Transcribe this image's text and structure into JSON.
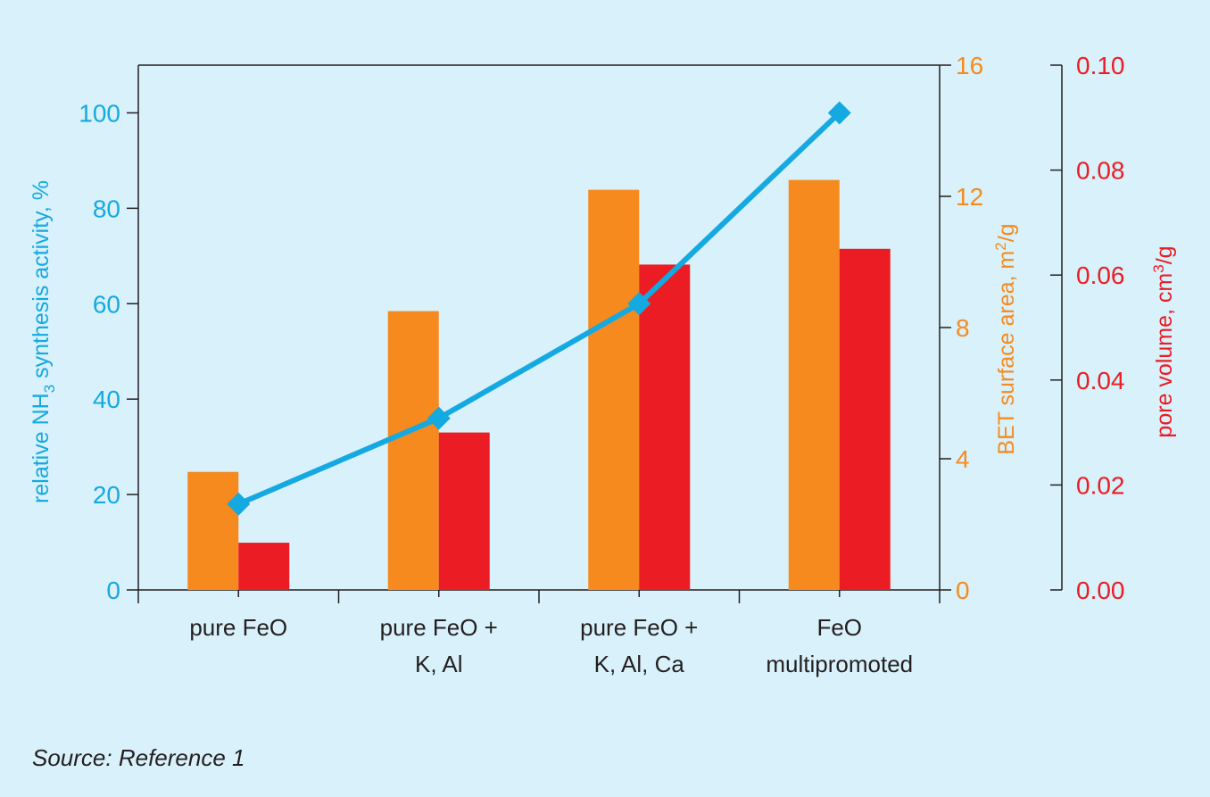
{
  "chart_data": {
    "type": "bar",
    "categories": [
      [
        "pure FeO"
      ],
      [
        "pure FeO +",
        "K, Al"
      ],
      [
        "pure FeO +",
        "K, Al, Ca"
      ],
      [
        "FeO",
        "multipromoted"
      ]
    ],
    "series": [
      {
        "type": "bar",
        "axis": "bet",
        "color": "#f68a1e",
        "values": [
          3.6,
          8.5,
          12.2,
          12.5
        ]
      },
      {
        "type": "bar",
        "axis": "pore",
        "color": "#ec1c24",
        "values": [
          0.009,
          0.03,
          0.062,
          0.065
        ]
      },
      {
        "type": "line",
        "axis": "activity",
        "color": "#14a9e1",
        "values": [
          18,
          36,
          60,
          100
        ]
      }
    ],
    "axes": {
      "activity": {
        "label_pre": "relative NH",
        "label_sub": "3",
        "label_post": " synthesis activity, %",
        "color": "#14a9e1",
        "range": [
          0,
          110
        ],
        "ticks": [
          0,
          20,
          40,
          60,
          80,
          100
        ],
        "tick_labels": [
          "0",
          "20",
          "40",
          "60",
          "80",
          "100"
        ]
      },
      "bet": {
        "label_pre": "BET surface area, m",
        "label_sup": "2",
        "label_post": "/g",
        "color": "#f68a1e",
        "range": [
          0,
          16
        ],
        "ticks": [
          0,
          4,
          8,
          12,
          16
        ],
        "tick_labels": [
          "0",
          "4",
          "8",
          "12",
          "16"
        ]
      },
      "pore": {
        "label_pre": "pore volume, cm",
        "label_sup": "3",
        "label_post": "/g",
        "color": "#ec1c24",
        "range": [
          0,
          0.1
        ],
        "ticks": [
          0,
          0.02,
          0.04,
          0.06,
          0.08,
          0.1
        ],
        "tick_labels": [
          "0.00",
          "0.02",
          "0.04",
          "0.06",
          "0.08",
          "0.10"
        ]
      }
    },
    "grid": false,
    "legend": "none"
  },
  "footer": {
    "source": "Source: Reference 1"
  }
}
